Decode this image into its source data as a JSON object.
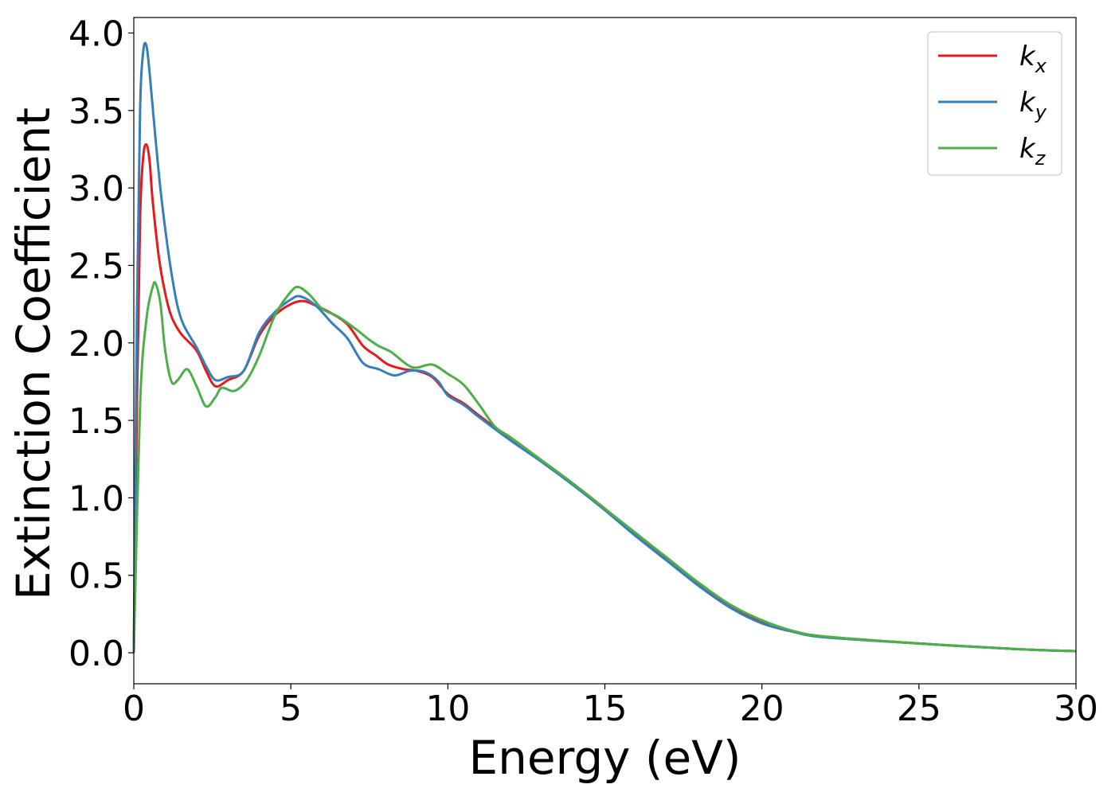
{
  "chart_data": {
    "type": "line",
    "xlabel": "Energy (eV)",
    "ylabel": "Extinction Coefficient",
    "xlim": [
      0,
      30
    ],
    "ylim": [
      -0.2,
      4.1
    ],
    "xticks": [
      0,
      5,
      10,
      15,
      20,
      25,
      30
    ],
    "yticks": [
      0.0,
      0.5,
      1.0,
      1.5,
      2.0,
      2.5,
      3.0,
      3.5,
      4.0
    ],
    "xtick_labels": [
      "0",
      "5",
      "10",
      "15",
      "20",
      "25",
      "30"
    ],
    "ytick_labels": [
      "0.0",
      "0.5",
      "1.0",
      "1.5",
      "2.0",
      "2.5",
      "3.0",
      "3.5",
      "4.0"
    ],
    "grid": false,
    "legend_position": "top-right",
    "series": [
      {
        "name": "kx",
        "label_base": "k",
        "label_sub": "x",
        "color": "#e41a1c",
        "points": [
          [
            0,
            0
          ],
          [
            0.1,
            1.6
          ],
          [
            0.2,
            2.8
          ],
          [
            0.3,
            3.2
          ],
          [
            0.4,
            3.28
          ],
          [
            0.5,
            3.18
          ],
          [
            0.6,
            2.92
          ],
          [
            0.8,
            2.55
          ],
          [
            1.0,
            2.32
          ],
          [
            1.2,
            2.17
          ],
          [
            1.5,
            2.06
          ],
          [
            2.0,
            1.95
          ],
          [
            2.3,
            1.82
          ],
          [
            2.6,
            1.72
          ],
          [
            3.0,
            1.76
          ],
          [
            3.5,
            1.82
          ],
          [
            4.0,
            2.05
          ],
          [
            4.5,
            2.18
          ],
          [
            5.0,
            2.25
          ],
          [
            5.4,
            2.27
          ],
          [
            5.8,
            2.24
          ],
          [
            6.3,
            2.19
          ],
          [
            6.8,
            2.12
          ],
          [
            7.3,
            1.98
          ],
          [
            7.7,
            1.92
          ],
          [
            8.1,
            1.86
          ],
          [
            8.6,
            1.83
          ],
          [
            9.0,
            1.82
          ],
          [
            9.5,
            1.78
          ],
          [
            10.0,
            1.67
          ],
          [
            10.5,
            1.61
          ],
          [
            11.0,
            1.53
          ],
          [
            12.0,
            1.38
          ],
          [
            13.0,
            1.24
          ],
          [
            14.0,
            1.09
          ],
          [
            15.0,
            0.93
          ],
          [
            16.0,
            0.76
          ],
          [
            17.0,
            0.6
          ],
          [
            18.0,
            0.44
          ],
          [
            19.0,
            0.3
          ],
          [
            20.0,
            0.2
          ],
          [
            21.0,
            0.14
          ],
          [
            22.0,
            0.105
          ],
          [
            25.0,
            0.06
          ],
          [
            28.0,
            0.025
          ],
          [
            30.0,
            0.01
          ]
        ]
      },
      {
        "name": "ky",
        "label_base": "k",
        "label_sub": "y",
        "color": "#377eb8",
        "points": [
          [
            0,
            0
          ],
          [
            0.1,
            2.2
          ],
          [
            0.2,
            3.5
          ],
          [
            0.3,
            3.88
          ],
          [
            0.4,
            3.92
          ],
          [
            0.5,
            3.75
          ],
          [
            0.7,
            3.3
          ],
          [
            0.9,
            2.9
          ],
          [
            1.2,
            2.45
          ],
          [
            1.5,
            2.16
          ],
          [
            2.0,
            1.97
          ],
          [
            2.3,
            1.85
          ],
          [
            2.6,
            1.76
          ],
          [
            3.0,
            1.78
          ],
          [
            3.5,
            1.82
          ],
          [
            4.0,
            2.07
          ],
          [
            4.5,
            2.2
          ],
          [
            5.0,
            2.28
          ],
          [
            5.3,
            2.3
          ],
          [
            5.8,
            2.24
          ],
          [
            6.3,
            2.13
          ],
          [
            6.8,
            2.03
          ],
          [
            7.3,
            1.87
          ],
          [
            7.8,
            1.83
          ],
          [
            8.3,
            1.79
          ],
          [
            8.8,
            1.82
          ],
          [
            9.3,
            1.81
          ],
          [
            9.7,
            1.75
          ],
          [
            10.0,
            1.66
          ],
          [
            10.5,
            1.6
          ],
          [
            11.0,
            1.52
          ],
          [
            12.0,
            1.37
          ],
          [
            13.0,
            1.23
          ],
          [
            14.0,
            1.08
          ],
          [
            15.0,
            0.92
          ],
          [
            16.0,
            0.75
          ],
          [
            17.0,
            0.59
          ],
          [
            18.0,
            0.43
          ],
          [
            19.0,
            0.29
          ],
          [
            20.0,
            0.19
          ],
          [
            21.0,
            0.135
          ],
          [
            22.0,
            0.1
          ],
          [
            25.0,
            0.06
          ],
          [
            28.0,
            0.025
          ],
          [
            30.0,
            0.01
          ]
        ]
      },
      {
        "name": "kz",
        "label_base": "k",
        "label_sub": "z",
        "color": "#4daf4a",
        "points": [
          [
            0,
            0
          ],
          [
            0.2,
            1.6
          ],
          [
            0.4,
            2.15
          ],
          [
            0.6,
            2.36
          ],
          [
            0.7,
            2.38
          ],
          [
            0.85,
            2.25
          ],
          [
            1.0,
            1.95
          ],
          [
            1.2,
            1.75
          ],
          [
            1.4,
            1.76
          ],
          [
            1.7,
            1.83
          ],
          [
            2.0,
            1.72
          ],
          [
            2.3,
            1.59
          ],
          [
            2.6,
            1.65
          ],
          [
            2.8,
            1.71
          ],
          [
            3.2,
            1.69
          ],
          [
            3.6,
            1.76
          ],
          [
            4.0,
            1.92
          ],
          [
            4.5,
            2.18
          ],
          [
            5.0,
            2.33
          ],
          [
            5.25,
            2.36
          ],
          [
            5.6,
            2.31
          ],
          [
            6.0,
            2.22
          ],
          [
            6.5,
            2.17
          ],
          [
            7.0,
            2.1
          ],
          [
            7.5,
            2.02
          ],
          [
            7.8,
            1.98
          ],
          [
            8.2,
            1.94
          ],
          [
            8.7,
            1.86
          ],
          [
            9.0,
            1.84
          ],
          [
            9.5,
            1.86
          ],
          [
            10.0,
            1.8
          ],
          [
            10.5,
            1.73
          ],
          [
            11.0,
            1.6
          ],
          [
            11.5,
            1.46
          ],
          [
            12.0,
            1.39
          ],
          [
            13.0,
            1.24
          ],
          [
            14.0,
            1.09
          ],
          [
            15.0,
            0.93
          ],
          [
            16.0,
            0.77
          ],
          [
            17.0,
            0.61
          ],
          [
            18.0,
            0.45
          ],
          [
            19.0,
            0.31
          ],
          [
            20.0,
            0.21
          ],
          [
            21.0,
            0.14
          ],
          [
            22.0,
            0.105
          ],
          [
            25.0,
            0.06
          ],
          [
            28.0,
            0.025
          ],
          [
            30.0,
            0.01
          ]
        ]
      }
    ]
  }
}
